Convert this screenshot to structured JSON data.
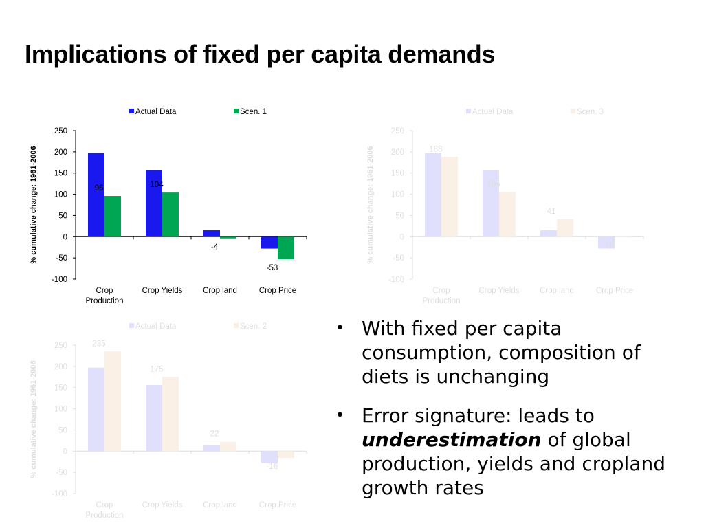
{
  "slide": {
    "title": "Implications of fixed per capita demands"
  },
  "bullets": [
    {
      "text": "With fixed per capita consumption, composition of diets is unchanging"
    },
    {
      "pre": "Error signature: leads to ",
      "emph": "underestimation",
      "post": " of global production, yields and cropland growth rates"
    }
  ],
  "chart_data": [
    {
      "type": "bar",
      "categories": [
        [
          "Crop",
          "Production"
        ],
        [
          "Crop Yields"
        ],
        [
          "Crop land"
        ],
        [
          "Crop Price"
        ]
      ],
      "ylabel": "% cumulative change: 1961-2006",
      "ylim": [
        -100,
        250
      ],
      "yticks": [
        250,
        200,
        150,
        100,
        50,
        0,
        -50,
        -100
      ],
      "legend_position": "top",
      "series": [
        {
          "name": "Actual Data",
          "values": [
            197,
            156,
            15,
            -28
          ],
          "color": "#1919ef",
          "labels": [
            null,
            null,
            null,
            null
          ]
        },
        {
          "name": "Scen. 1",
          "values": [
            96,
            104,
            -4,
            -53
          ],
          "color": "#00a651",
          "labels": [
            "96",
            "104",
            "-4",
            "-53"
          ]
        }
      ]
    },
    {
      "type": "bar",
      "categories": [
        [
          "Crop",
          "Production"
        ],
        [
          "Crop Yields"
        ],
        [
          "Crop land"
        ],
        [
          "Crop Price"
        ]
      ],
      "ylabel": "% cumulative change: 1961-2006",
      "ylim": [
        -100,
        250
      ],
      "yticks": [
        250,
        200,
        150,
        100,
        50,
        0,
        -50,
        -100
      ],
      "legend_position": "top",
      "series": [
        {
          "name": "Actual Data",
          "values": [
            197,
            156,
            15,
            -28
          ],
          "color": "#1919ef",
          "labels": [
            null,
            null,
            null,
            null
          ]
        },
        {
          "name": "Scen. 3",
          "values": [
            188,
            105,
            41,
            -1
          ],
          "color": "#e8904a",
          "labels": [
            "188",
            "105",
            "41",
            "-1"
          ]
        }
      ]
    },
    {
      "type": "bar",
      "categories": [
        [
          "Crop",
          "Production"
        ],
        [
          "Crop Yields"
        ],
        [
          "Crop land"
        ],
        [
          "Crop Price"
        ]
      ],
      "ylabel": "% cumulative change: 1961-2006",
      "ylim": [
        -100,
        250
      ],
      "yticks": [
        250,
        200,
        150,
        100,
        50,
        0,
        -50,
        -100
      ],
      "legend_position": "top",
      "series": [
        {
          "name": "Actual Data",
          "values": [
            197,
            156,
            15,
            -28
          ],
          "color": "#1919ef",
          "labels": [
            null,
            null,
            null,
            null
          ]
        },
        {
          "name": "Scen. 2",
          "values": [
            235,
            175,
            22,
            -16
          ],
          "color": "#e8904a",
          "labels": [
            "235",
            "175",
            "22",
            "-16"
          ]
        }
      ]
    }
  ]
}
